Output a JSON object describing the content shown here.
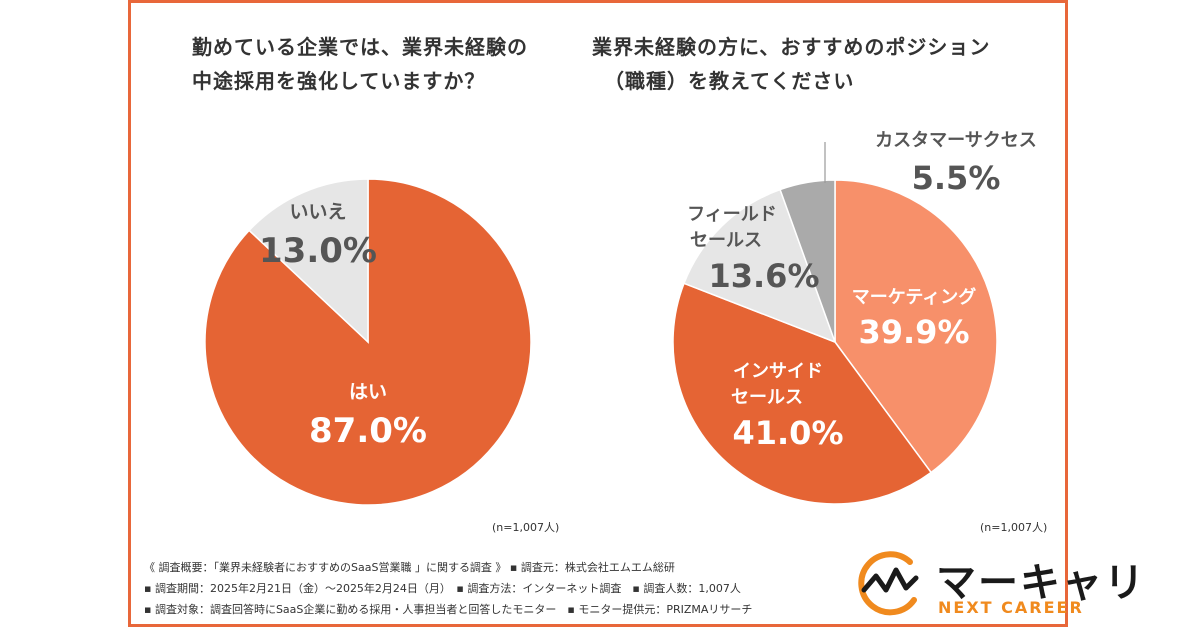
{
  "chart_data": [
    {
      "type": "pie",
      "title": "勤めている企業では、業界未経験の中途採用を強化していますか？",
      "slices": [
        {
          "label": "はい",
          "value": 87.0,
          "value_label": "87.0%",
          "color": "#e56434"
        },
        {
          "label": "いいえ",
          "value": 13.0,
          "value_label": "13.0%",
          "color": "#e6e6e6"
        }
      ],
      "note": "(n=1,007人)"
    },
    {
      "type": "pie",
      "title": "業界未経験の方に、おすすめのポジション（職種）を教えてください",
      "slices": [
        {
          "label": "マーケティング",
          "value": 39.9,
          "value_label": "39.9%",
          "color": "#f7906a"
        },
        {
          "label": "インサイドセールス",
          "value": 41.0,
          "value_label": "41.0%",
          "color": "#e56434"
        },
        {
          "label": "フィールドセールス",
          "value": 13.6,
          "value_label": "13.6%",
          "color": "#e6e6e6"
        },
        {
          "label": "カスタマーサクセス",
          "value": 5.5,
          "value_label": "5.5%",
          "color": "#aaaaaa"
        }
      ],
      "note": "(n=1,007人)"
    }
  ],
  "titles": {
    "left_line1": "勤めている企業では、業界未経験の",
    "left_line2": "中途採用を強化していますか？",
    "right_line1": "業界未経験の方に、おすすめのポジション",
    "right_line2": "（職種）を教えてください"
  },
  "labels": {
    "left_yes_name": "はい",
    "left_yes_value": "87.0%",
    "left_no_name": "いいえ",
    "left_no_value": "13.0%",
    "right_marketing_name": "マーケティング",
    "right_marketing_value": "39.9%",
    "right_inside_name1": "インサイド",
    "right_inside_name2": "セールス",
    "right_inside_value": "41.0%",
    "right_field_name1": "フィールド",
    "right_field_name2": "セールス",
    "right_field_value": "13.6%",
    "right_cs_name": "カスタマーサクセス",
    "right_cs_value": "5.5%"
  },
  "sample_note_left": "(n=1,007人)",
  "sample_note_right": "(n=1,007人)",
  "survey_notes": {
    "line1": "《 調査概要：「業界未経験者におすすめのSaaS営業職 」に関する調査 》 ▪ 調査元：株式会社エムエム総研",
    "line2": "▪ 調査期間：2025年2月21日（金）〜2025年2月24日（月）　▪ 調査方法：インターネット調査　▪ 調査人数：1,007人",
    "line3": "▪ 調査対象：調査回答時にSaaS企業に勤める採用・人事担当者と回答したモニター　▪ モニター提供元：PRIZMAリサーチ"
  },
  "logo": {
    "name": "マーキャリ",
    "sub": "NEXT CAREER",
    "accent_color": "#f08a1e"
  }
}
